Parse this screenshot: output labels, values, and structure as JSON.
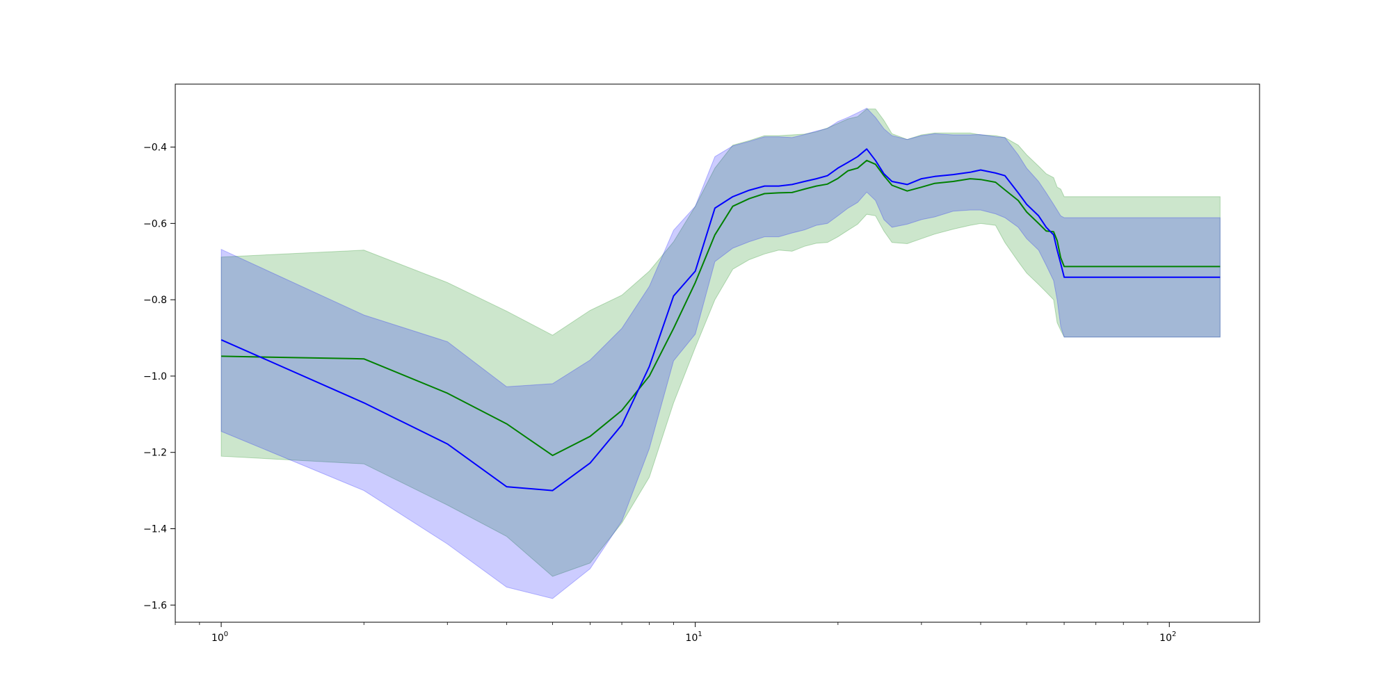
{
  "chart_data": {
    "type": "line",
    "title": "",
    "xlabel": "",
    "ylabel": "",
    "xscale": "log",
    "xlim": [
      0.8,
      155
    ],
    "ylim": [
      -1.645,
      -0.235
    ],
    "grid": false,
    "legend": "none",
    "x_tick_labels": [
      {
        "value": 1,
        "base": "10",
        "exp": "0"
      },
      {
        "value": 10,
        "base": "10",
        "exp": "1"
      },
      {
        "value": 100,
        "base": "10",
        "exp": "2"
      }
    ],
    "y_ticks": [
      {
        "value": -1.6,
        "label": "−1.6"
      },
      {
        "value": -1.4,
        "label": "−1.4"
      },
      {
        "value": -1.2,
        "label": "−1.2"
      },
      {
        "value": -1.0,
        "label": "−1.0"
      },
      {
        "value": -0.8,
        "label": "−0.8"
      },
      {
        "value": -0.6,
        "label": "−0.6"
      },
      {
        "value": -0.4,
        "label": "−0.4"
      }
    ],
    "series": [
      {
        "color": "#008000",
        "band_color": "#008000",
        "band_opacity": 0.2,
        "x": [
          1,
          2,
          3,
          4,
          5,
          6,
          7,
          8,
          9,
          10,
          11,
          12,
          13,
          14,
          15,
          16,
          17,
          18,
          19,
          20,
          21,
          22,
          23,
          24,
          25,
          26,
          28,
          30,
          32,
          35,
          38,
          40,
          43,
          45,
          48,
          50,
          53,
          55,
          57,
          58,
          59,
          60,
          128
        ],
        "y": [
          -0.948,
          -0.955,
          -1.045,
          -1.125,
          -1.208,
          -1.158,
          -1.09,
          -1.0,
          -0.875,
          -0.755,
          -0.63,
          -0.555,
          -0.535,
          -0.522,
          -0.52,
          -0.519,
          -0.51,
          -0.502,
          -0.497,
          -0.482,
          -0.462,
          -0.455,
          -0.435,
          -0.445,
          -0.475,
          -0.5,
          -0.515,
          -0.505,
          -0.495,
          -0.49,
          -0.483,
          -0.485,
          -0.492,
          -0.512,
          -0.54,
          -0.57,
          -0.6,
          -0.62,
          -0.622,
          -0.645,
          -0.69,
          -0.713,
          -0.713
        ],
        "upper": [
          -0.688,
          -0.67,
          -0.755,
          -0.83,
          -0.893,
          -0.828,
          -0.788,
          -0.725,
          -0.648,
          -0.555,
          -0.455,
          -0.395,
          -0.383,
          -0.37,
          -0.37,
          -0.368,
          -0.366,
          -0.36,
          -0.35,
          -0.338,
          -0.326,
          -0.32,
          -0.3,
          -0.3,
          -0.33,
          -0.365,
          -0.38,
          -0.368,
          -0.363,
          -0.363,
          -0.363,
          -0.368,
          -0.37,
          -0.375,
          -0.395,
          -0.42,
          -0.45,
          -0.47,
          -0.48,
          -0.505,
          -0.51,
          -0.53,
          -0.53
        ],
        "lower": [
          -1.21,
          -1.23,
          -1.338,
          -1.42,
          -1.525,
          -1.49,
          -1.385,
          -1.265,
          -1.07,
          -0.925,
          -0.8,
          -0.72,
          -0.695,
          -0.68,
          -0.67,
          -0.673,
          -0.66,
          -0.652,
          -0.65,
          -0.635,
          -0.618,
          -0.602,
          -0.576,
          -0.58,
          -0.62,
          -0.65,
          -0.653,
          -0.64,
          -0.628,
          -0.615,
          -0.605,
          -0.6,
          -0.605,
          -0.65,
          -0.7,
          -0.73,
          -0.76,
          -0.78,
          -0.8,
          -0.86,
          -0.88,
          -0.898,
          -0.898
        ]
      },
      {
        "color": "#0000ff",
        "band_color": "#0000ff",
        "band_opacity": 0.2,
        "x": [
          1,
          2,
          3,
          4,
          5,
          6,
          7,
          8,
          9,
          10,
          11,
          12,
          13,
          14,
          15,
          16,
          17,
          18,
          19,
          20,
          21,
          22,
          23,
          24,
          25,
          26,
          28,
          30,
          32,
          35,
          38,
          40,
          43,
          45,
          48,
          50,
          53,
          55,
          57,
          58,
          59,
          60,
          128
        ],
        "y": [
          -0.905,
          -1.07,
          -1.178,
          -1.29,
          -1.3,
          -1.228,
          -1.128,
          -0.975,
          -0.79,
          -0.725,
          -0.56,
          -0.53,
          -0.513,
          -0.502,
          -0.502,
          -0.498,
          -0.49,
          -0.483,
          -0.475,
          -0.455,
          -0.44,
          -0.425,
          -0.405,
          -0.435,
          -0.47,
          -0.49,
          -0.498,
          -0.483,
          -0.477,
          -0.472,
          -0.466,
          -0.46,
          -0.468,
          -0.475,
          -0.52,
          -0.55,
          -0.58,
          -0.61,
          -0.63,
          -0.67,
          -0.705,
          -0.741,
          -0.741
        ],
        "upper": [
          -0.668,
          -0.84,
          -0.91,
          -1.028,
          -1.02,
          -0.958,
          -0.875,
          -0.765,
          -0.618,
          -0.555,
          -0.425,
          -0.397,
          -0.385,
          -0.373,
          -0.373,
          -0.375,
          -0.367,
          -0.358,
          -0.351,
          -0.333,
          -0.322,
          -0.31,
          -0.298,
          -0.322,
          -0.352,
          -0.37,
          -0.38,
          -0.37,
          -0.365,
          -0.368,
          -0.368,
          -0.367,
          -0.373,
          -0.375,
          -0.42,
          -0.455,
          -0.49,
          -0.52,
          -0.55,
          -0.565,
          -0.58,
          -0.585,
          -0.585
        ],
        "lower": [
          -1.145,
          -1.3,
          -1.44,
          -1.553,
          -1.583,
          -1.505,
          -1.38,
          -1.19,
          -0.96,
          -0.89,
          -0.7,
          -0.665,
          -0.648,
          -0.635,
          -0.635,
          -0.625,
          -0.617,
          -0.605,
          -0.6,
          -0.58,
          -0.56,
          -0.545,
          -0.518,
          -0.54,
          -0.59,
          -0.61,
          -0.602,
          -0.59,
          -0.583,
          -0.568,
          -0.565,
          -0.565,
          -0.575,
          -0.585,
          -0.61,
          -0.64,
          -0.67,
          -0.71,
          -0.75,
          -0.8,
          -0.87,
          -0.898,
          -0.898
        ]
      }
    ]
  }
}
